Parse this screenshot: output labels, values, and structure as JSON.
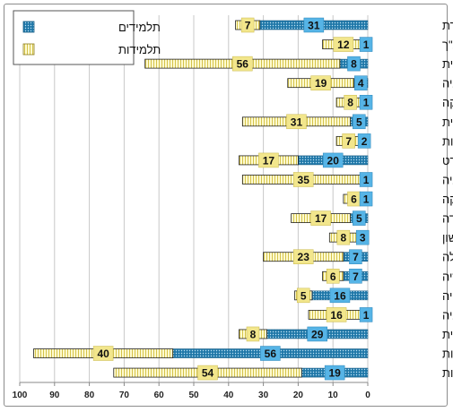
{
  "chart_data": {
    "type": "bar",
    "orientation": "horizontal",
    "stacked": true,
    "x_axis_reversed": true,
    "xlim": [
      0,
      100
    ],
    "xticks": [
      0,
      10,
      20,
      30,
      40,
      50,
      60,
      70,
      80,
      90,
      100
    ],
    "grid": true,
    "legend_position": "top-left",
    "categories": [
      "תקשורת",
      "תנ\"ך",
      "צרפתית",
      "פסיכולוגיה",
      "פיזיקה",
      "ערבית",
      "ספרות",
      "ספורט",
      "סוציולוגיה",
      "מתמטיקה",
      "מעבדה",
      "לשון",
      "כלכלה",
      "היסטוריה",
      "גיאוגרפיה",
      "ביולוגיה",
      "אנגלית",
      "אזרחות",
      "אומנות"
    ],
    "series": [
      {
        "name": "תלמידים",
        "color": "#2e8fc0",
        "values": [
          31,
          1,
          8,
          4,
          1,
          5,
          2,
          20,
          1,
          1,
          5,
          3,
          7,
          7,
          16,
          1,
          29,
          56,
          19
        ]
      },
      {
        "name": "תלמידות",
        "color": "#fff8b0",
        "values": [
          7,
          12,
          56,
          19,
          8,
          31,
          7,
          17,
          35,
          6,
          17,
          8,
          23,
          6,
          5,
          16,
          8,
          40,
          54
        ]
      }
    ]
  }
}
